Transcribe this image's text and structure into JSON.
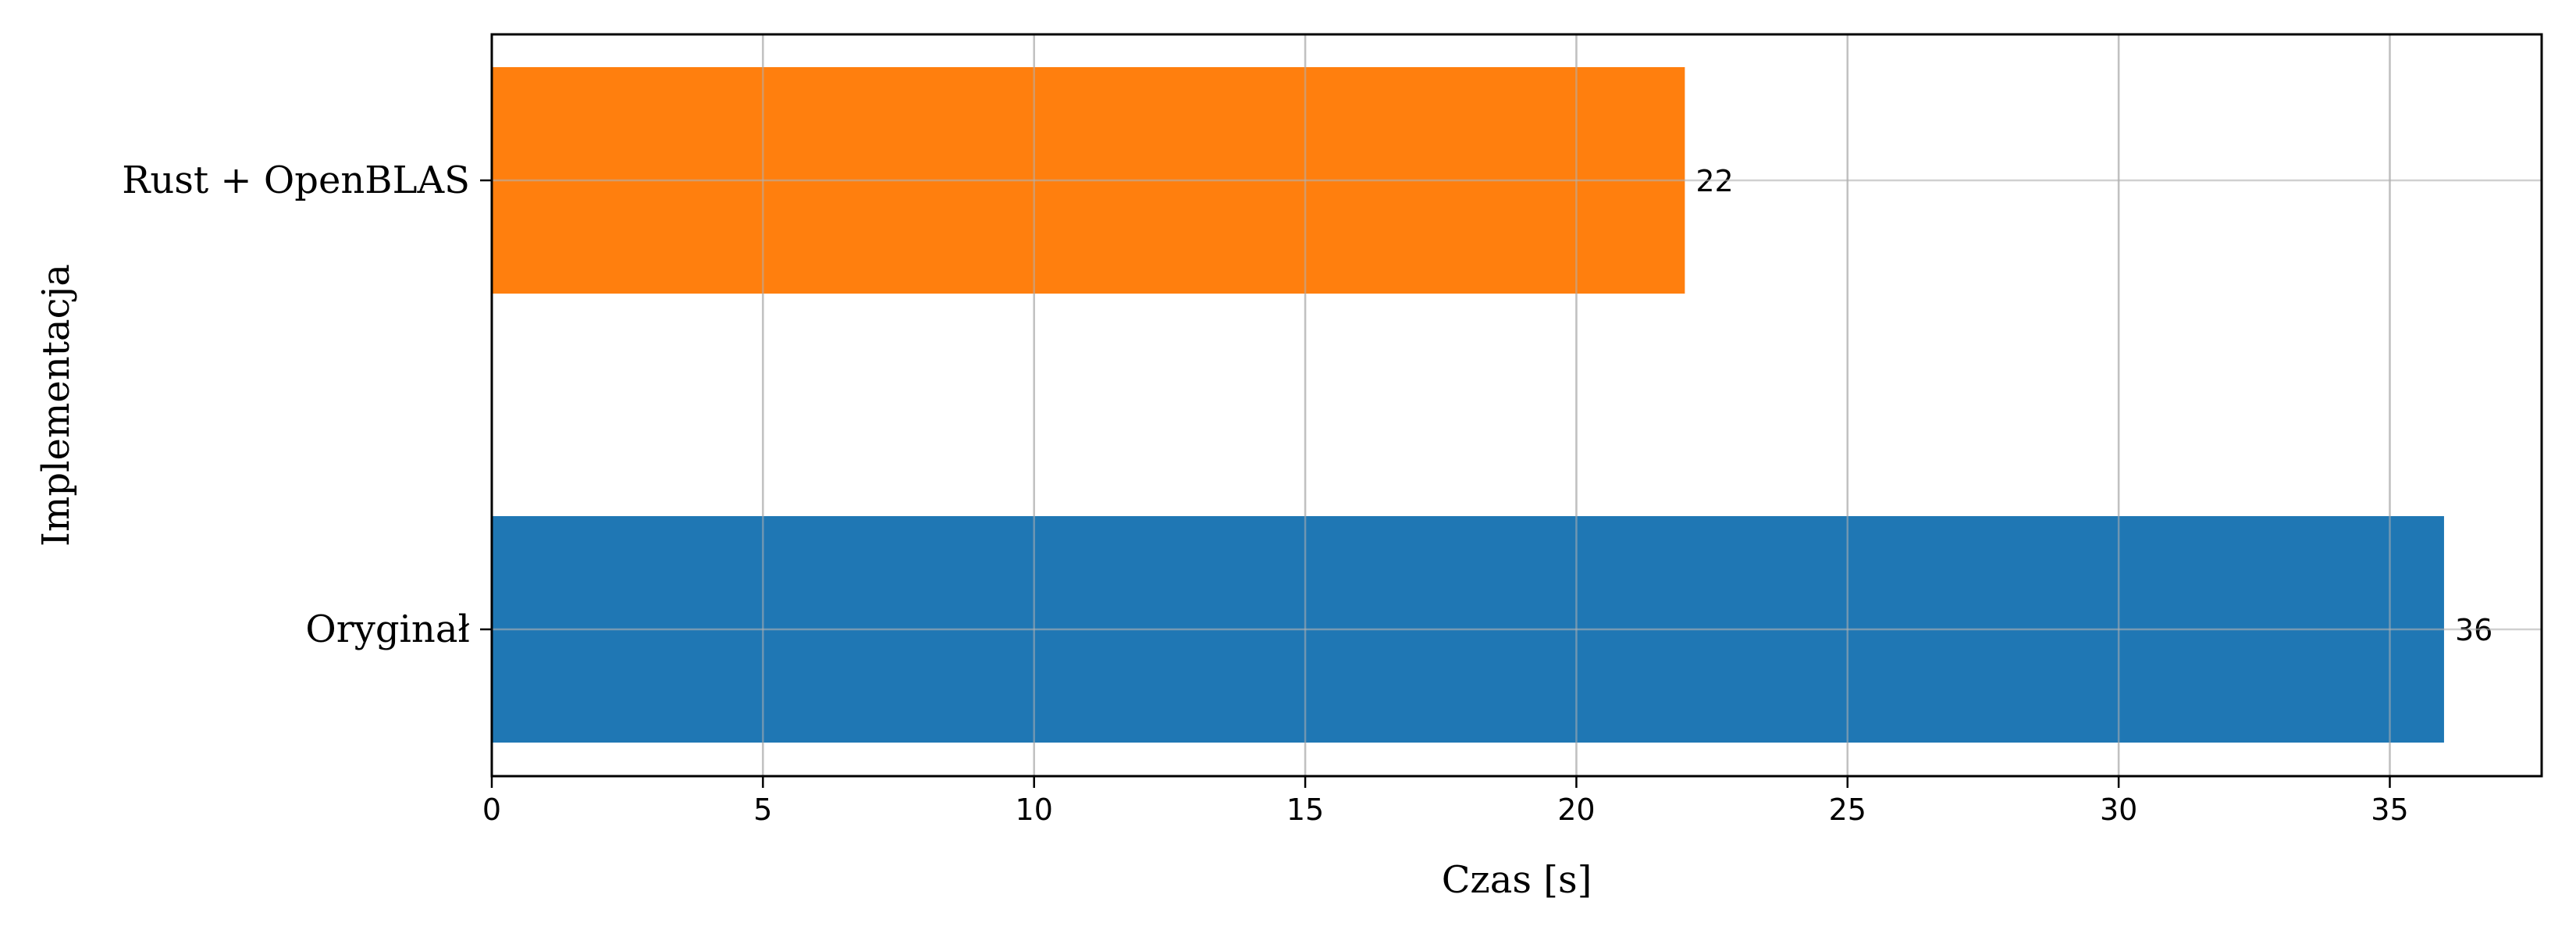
{
  "chart_data": {
    "type": "bar",
    "orientation": "horizontal",
    "categories": [
      "Rust + OpenBLAS",
      "Oryginał"
    ],
    "values": [
      22,
      36
    ],
    "value_labels": [
      "22",
      "36"
    ],
    "bar_colors": [
      "#ff7f0e",
      "#1f77b4"
    ],
    "title": "",
    "xlabel": "Czas [s]",
    "ylabel": "Implementacja",
    "xlim": [
      0,
      37.8
    ],
    "xticks": [
      0,
      5,
      10,
      15,
      20,
      25,
      30,
      35
    ],
    "xtick_labels": [
      "0",
      "5",
      "10",
      "15",
      "20",
      "25",
      "30",
      "35"
    ],
    "grid": true,
    "legend": "none"
  }
}
